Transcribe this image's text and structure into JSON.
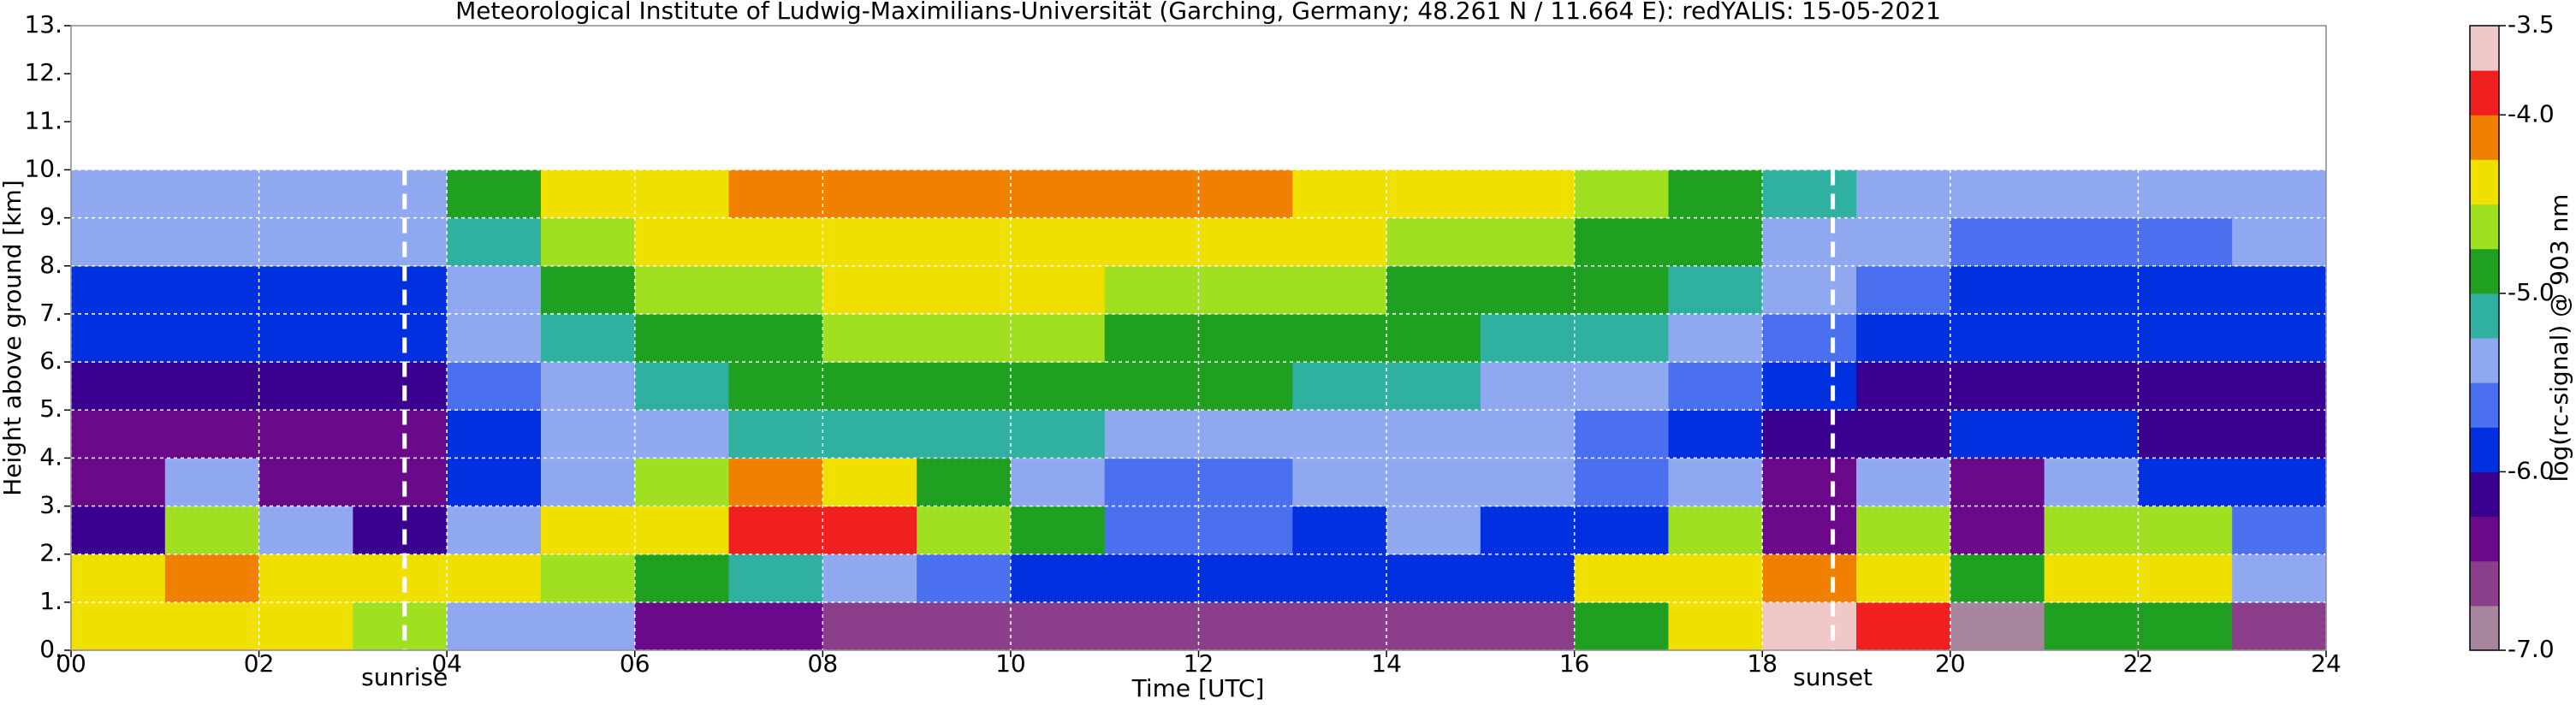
{
  "chart_data": {
    "type": "heatmap",
    "title": "Meteorological Institute of Ludwig-Maximilians-Universität (Garching, Germany; 48.261 N / 11.664 E):    redYALIS: 15-05-2021",
    "xlabel": "Time [UTC]",
    "ylabel": "Height above ground [km]",
    "xlim": [
      0,
      24
    ],
    "ylim": [
      0,
      13
    ],
    "xticks": [
      {
        "value": 0,
        "label": "00"
      },
      {
        "value": 2,
        "label": "02"
      },
      {
        "value": 4,
        "label": "04"
      },
      {
        "value": 6,
        "label": "06"
      },
      {
        "value": 8,
        "label": "08"
      },
      10,
      12,
      14,
      16,
      18,
      20,
      22,
      24
    ],
    "yticks": [
      {
        "value": 0,
        "label": "0."
      },
      {
        "value": 1,
        "label": "1."
      },
      {
        "value": 2,
        "label": "2."
      },
      {
        "value": 3,
        "label": "3."
      },
      {
        "value": 4,
        "label": "4."
      },
      {
        "value": 5,
        "label": "5."
      },
      {
        "value": 6,
        "label": "6."
      },
      {
        "value": 7,
        "label": "7."
      },
      {
        "value": 8,
        "label": "8."
      },
      {
        "value": 9,
        "label": "9."
      },
      {
        "value": 10,
        "label": "10."
      },
      {
        "value": 11,
        "label": "11."
      },
      {
        "value": 12,
        "label": "12."
      },
      {
        "value": 13,
        "label": "13."
      }
    ],
    "grid": true,
    "x_bins": [
      0,
      1,
      2,
      3,
      4,
      5,
      6,
      7,
      8,
      9,
      10,
      11,
      12,
      13,
      14,
      15,
      16,
      17,
      18,
      19,
      20,
      21,
      22,
      23,
      24
    ],
    "y_bins": [
      0,
      1,
      2,
      3,
      4,
      5,
      6,
      7,
      8,
      9,
      10
    ],
    "z": [
      [
        -4.5,
        -4.4,
        -4.5,
        -4.6,
        -5.3,
        -5.5,
        -6.3,
        -6.5,
        -6.6,
        -6.6,
        -6.6,
        -6.7,
        -6.7,
        -6.7,
        -6.7,
        -6.6,
        -5.0,
        -4.3,
        -3.7,
        -4.0,
        -6.8,
        -4.8,
        -4.8,
        -6.7
      ],
      [
        -4.3,
        -4.2,
        -4.4,
        -4.4,
        -4.4,
        -4.6,
        -5.0,
        -5.2,
        -5.4,
        -5.6,
        -5.8,
        -5.9,
        -6.0,
        -6.0,
        -6.0,
        -5.9,
        -4.5,
        -4.4,
        -4.2,
        -4.3,
        -4.8,
        -4.3,
        -4.4,
        -5.5
      ],
      [
        -6.2,
        -4.6,
        -5.5,
        -6.2,
        -5.5,
        -4.4,
        -4.4,
        -3.9,
        -3.9,
        -4.6,
        -4.8,
        -5.6,
        -5.6,
        -5.8,
        -5.3,
        -5.8,
        -5.8,
        -4.7,
        -6.3,
        -4.6,
        -6.3,
        -4.6,
        -4.7,
        -5.6
      ],
      [
        -6.4,
        -5.5,
        -6.3,
        -6.4,
        -5.9,
        -5.3,
        -4.6,
        -4.1,
        -4.4,
        -5.0,
        -5.4,
        -5.6,
        -5.6,
        -5.5,
        -5.4,
        -5.5,
        -5.6,
        -5.5,
        -6.4,
        -5.3,
        -6.4,
        -5.4,
        -5.8,
        -6.0
      ],
      [
        -6.3,
        -6.3,
        -6.3,
        -6.3,
        -5.9,
        -5.5,
        -5.3,
        -5.2,
        -5.2,
        -5.2,
        -5.2,
        -5.3,
        -5.3,
        -5.3,
        -5.4,
        -5.5,
        -5.6,
        -5.8,
        -6.1,
        -6.2,
        -5.8,
        -6.0,
        -6.2,
        -6.1
      ],
      [
        -6.2,
        -6.2,
        -6.2,
        -6.2,
        -5.7,
        -5.3,
        -5.1,
        -5.0,
        -4.9,
        -4.9,
        -4.9,
        -5.0,
        -5.0,
        -5.1,
        -5.2,
        -5.3,
        -5.4,
        -5.6,
        -5.9,
        -6.1,
        -6.1,
        -6.1,
        -6.1,
        -6.1
      ],
      [
        -6.0,
        -6.0,
        -6.0,
        -6.0,
        -5.5,
        -5.1,
        -4.9,
        -4.8,
        -4.7,
        -4.7,
        -4.7,
        -4.8,
        -4.8,
        -4.9,
        -5.0,
        -5.1,
        -5.2,
        -5.4,
        -5.7,
        -5.9,
        -6.0,
        -6.0,
        -6.0,
        -6.0
      ],
      [
        -5.8,
        -5.8,
        -5.8,
        -5.8,
        -5.3,
        -4.9,
        -4.7,
        -4.6,
        -4.5,
        -4.5,
        -4.5,
        -4.6,
        -4.6,
        -4.7,
        -4.8,
        -4.9,
        -5.0,
        -5.2,
        -5.5,
        -5.7,
        -5.8,
        -5.8,
        -5.8,
        -5.8
      ],
      [
        -5.5,
        -5.5,
        -5.5,
        -5.5,
        -5.1,
        -4.7,
        -4.5,
        -4.4,
        -4.3,
        -4.3,
        -4.3,
        -4.4,
        -4.4,
        -4.5,
        -4.6,
        -4.7,
        -4.8,
        -5.0,
        -5.3,
        -5.5,
        -5.6,
        -5.6,
        -5.6,
        -5.5
      ],
      [
        -5.3,
        -5.3,
        -5.3,
        -5.3,
        -4.9,
        -4.5,
        -4.3,
        -4.2,
        -4.1,
        -4.1,
        -4.1,
        -4.2,
        -4.2,
        -4.3,
        -4.4,
        -4.5,
        -4.6,
        -4.8,
        -5.1,
        -5.3,
        -5.4,
        -5.4,
        -5.4,
        -5.3
      ]
    ],
    "colorbar": {
      "label": "log(rc-signal) @ 903 nm",
      "lim": [
        -7.0,
        -3.5
      ],
      "ticks": [
        {
          "value": -3.5,
          "label": "-3.5"
        },
        {
          "value": -4.0,
          "label": "-4.0"
        },
        {
          "value": -5.0,
          "label": "-5.0"
        },
        {
          "value": -6.0,
          "label": "-6.0"
        },
        {
          "value": -7.0,
          "label": "-7.0"
        }
      ],
      "colors": [
        "#a8859f",
        "#8b3f8b",
        "#6a0a8a",
        "#3a0090",
        "#0030e0",
        "#4a70f0",
        "#90a8f0",
        "#30b0a0",
        "#20a020",
        "#a0e020",
        "#f0e000",
        "#f08000",
        "#f02020",
        "#f0c8c8"
      ]
    },
    "annotations": [
      {
        "text": "sunrise",
        "x": 3.55
      },
      {
        "text": "sunset",
        "x": 18.75
      }
    ]
  }
}
